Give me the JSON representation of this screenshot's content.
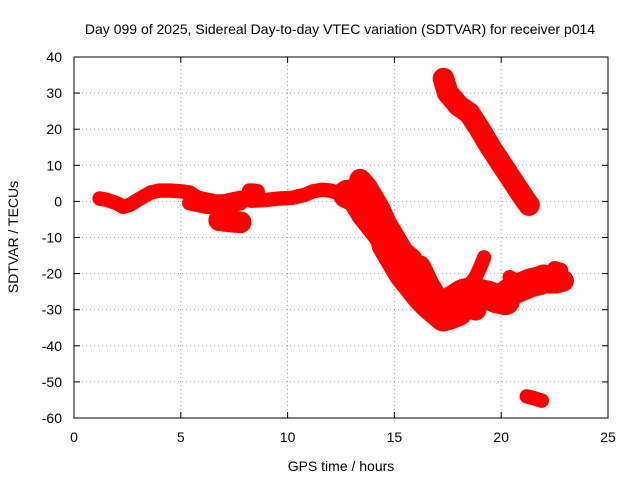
{
  "chart_data": {
    "type": "line",
    "title": "Day 099 of 2025, Sidereal Day-to-day VTEC variation (SDTVAR) for receiver p014",
    "xlabel": "GPS time / hours",
    "ylabel": "SDTVAR / TECUs",
    "xlim": [
      0,
      25
    ],
    "ylim": [
      -60,
      40
    ],
    "xticks": [
      0,
      5,
      10,
      15,
      20,
      25
    ],
    "yticks": [
      40,
      30,
      20,
      10,
      0,
      -10,
      -20,
      -30,
      -40,
      -50,
      -60
    ],
    "grid": true,
    "color": "#ff0000",
    "series": [
      {
        "band": 2,
        "x": [
          1.2,
          1.5,
          2.0,
          2.3,
          2.6,
          3.0,
          3.3,
          3.6,
          4.0,
          4.5,
          5.0,
          5.4,
          5.8,
          6.2,
          6.6,
          7.0,
          7.4,
          7.8
        ],
        "y": [
          0.8,
          0.5,
          -0.5,
          -1.5,
          -1.0,
          0.5,
          1.5,
          2.5,
          3.0,
          3.0,
          2.8,
          2.5,
          1.0,
          0.5,
          0.0,
          0.0,
          0.5,
          1.0
        ]
      },
      {
        "band": 2,
        "x": [
          5.4,
          5.8,
          6.2,
          6.6,
          7.0,
          7.4,
          7.8
        ],
        "y": [
          -0.5,
          -1.0,
          -1.5,
          -1.5,
          -1.0,
          -1.0,
          -0.5
        ]
      },
      {
        "band": 3,
        "x": [
          6.8,
          7.2,
          7.8
        ],
        "y": [
          -5.2,
          -5.5,
          -5.8
        ]
      },
      {
        "band": 2,
        "x": [
          8.2,
          8.4,
          8.6
        ],
        "y": [
          3.0,
          3.0,
          2.8
        ]
      },
      {
        "band": 2,
        "x": [
          8.3,
          9.0,
          9.6,
          10.2,
          10.8,
          11.2,
          11.6,
          12.0,
          12.3
        ],
        "y": [
          0.2,
          0.4,
          0.8,
          1.0,
          1.8,
          2.8,
          3.2,
          3.0,
          2.5
        ]
      },
      {
        "band": 2,
        "x": [
          12.3,
          12.7,
          13.0,
          13.3,
          13.5,
          13.8
        ],
        "y": [
          2.5,
          3.8,
          4.2,
          3.8,
          2.0,
          0.0
        ]
      },
      {
        "band": 3,
        "x": [
          13.4,
          13.7,
          14.0,
          14.3,
          14.6,
          15.0,
          15.4,
          15.8
        ],
        "y": [
          6.0,
          4.0,
          1.0,
          -2.0,
          -6.0,
          -10.0,
          -14.0,
          -16.0
        ]
      },
      {
        "band": 4,
        "x": [
          12.8,
          13.2,
          13.6,
          14.0,
          14.4,
          14.8,
          15.2,
          15.6,
          16.0
        ],
        "y": [
          2.0,
          1.0,
          -3.0,
          -6.0,
          -9.0,
          -13.0,
          -17.0,
          -19.5,
          -21.0
        ]
      },
      {
        "band": 4,
        "x": [
          14.6,
          15.0,
          15.4,
          15.8,
          16.2,
          16.6,
          17.0,
          17.3,
          17.6,
          18.0
        ],
        "y": [
          -12.0,
          -16.0,
          -20.0,
          -23.0,
          -26.0,
          -28.5,
          -30.5,
          -32.0,
          -31.5,
          -30.5
        ]
      },
      {
        "band": 3,
        "x": [
          16.2,
          16.6,
          17.0,
          17.2
        ],
        "y": [
          -18.0,
          -23.0,
          -27.0,
          -29.0
        ]
      },
      {
        "band": 3,
        "x": [
          16.8,
          17.0,
          17.4
        ],
        "y": [
          -27.0,
          -28.0,
          -29.5
        ]
      },
      {
        "band": 4,
        "x": [
          17.4,
          17.8,
          18.2,
          18.6,
          19.0,
          19.4,
          19.8,
          20.2
        ],
        "y": [
          -28.5,
          -27.0,
          -25.5,
          -25.0,
          -25.5,
          -26.0,
          -27.0,
          -27.5
        ]
      },
      {
        "band": 3,
        "x": [
          17.6,
          18.0,
          18.4,
          18.8
        ],
        "y": [
          -29.0,
          -28.5,
          -29.0,
          -30.0
        ]
      },
      {
        "band": 2,
        "x": [
          18.4,
          18.8,
          19.0,
          19.2
        ],
        "y": [
          -24.0,
          -21.0,
          -18.5,
          -15.5
        ]
      },
      {
        "band": 4,
        "x": [
          19.8,
          20.2,
          20.6,
          21.0,
          21.4,
          21.8,
          22.0
        ],
        "y": [
          -27.0,
          -26.0,
          -24.5,
          -23.5,
          -22.5,
          -22.0,
          -21.5
        ]
      },
      {
        "band": 3,
        "x": [
          20.2,
          20.6,
          21.0,
          21.4,
          21.8,
          22.2,
          22.6,
          22.9
        ],
        "y": [
          -25.0,
          -23.5,
          -23.0,
          -22.5,
          -22.0,
          -22.5,
          -22.5,
          -22.0
        ]
      },
      {
        "band": 2,
        "x": [
          20.4,
          20.8
        ],
        "y": [
          -21.0,
          -22.5
        ]
      },
      {
        "band": 2,
        "x": [
          22.5,
          22.8
        ],
        "y": [
          -18.5,
          -19.0
        ]
      },
      {
        "band": 3,
        "x": [
          17.3,
          17.5,
          17.8,
          18.0,
          18.5,
          19.0,
          19.5,
          20.0,
          20.5,
          21.0,
          21.3
        ],
        "y": [
          34.0,
          30.0,
          28.0,
          26.5,
          24.5,
          20.0,
          15.0,
          10.5,
          6.0,
          1.5,
          -1.0
        ]
      },
      {
        "band": 2,
        "x": [
          21.2,
          21.5,
          21.9
        ],
        "y": [
          -54.0,
          -54.5,
          -55.2
        ]
      }
    ]
  }
}
